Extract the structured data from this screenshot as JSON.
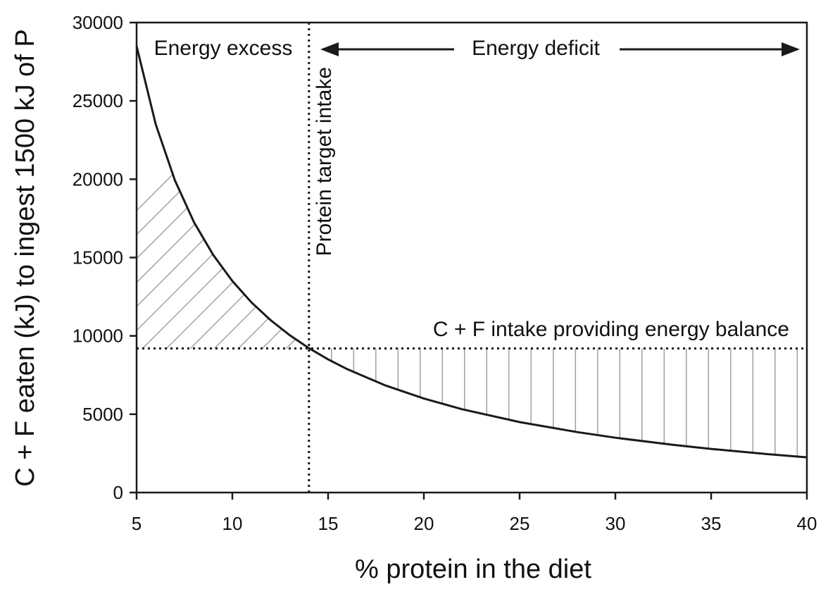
{
  "chart_data": {
    "type": "line",
    "xlabel": "% protein in the diet",
    "ylabel": "C + F eaten (kJ) to ingest 1500 kJ of P",
    "xlim": [
      5,
      40
    ],
    "ylim": [
      0,
      30000
    ],
    "x_ticks": [
      5,
      10,
      15,
      20,
      25,
      30,
      35,
      40
    ],
    "y_ticks": [
      0,
      5000,
      10000,
      15000,
      20000,
      25000,
      30000
    ],
    "x_tick_labels": [
      "5",
      "10",
      "15",
      "20",
      "25",
      "30",
      "35",
      "40"
    ],
    "y_tick_labels": [
      "0",
      "5000",
      "10000",
      "15000",
      "20000",
      "25000",
      "30000"
    ],
    "grid": false,
    "series": [
      {
        "x": [
          5,
          6,
          7,
          8,
          9,
          10,
          11,
          12,
          13,
          14,
          15,
          16,
          18,
          20,
          22,
          25,
          28,
          30,
          33,
          35,
          38,
          40
        ],
        "y": [
          28500,
          23500,
          19929,
          17250,
          15167,
          13500,
          12136,
          11000,
          10038,
          9214,
          8500,
          7875,
          6833,
          6000,
          5318,
          4500,
          3857,
          3500,
          3045,
          2786,
          2447,
          2250
        ],
        "color": "#1a1a1a"
      }
    ],
    "reference_lines": {
      "protein_target_x": 14,
      "energy_balance_y": 9200
    },
    "annotations": {
      "energy_excess": "Energy excess",
      "energy_deficit": "Energy deficit",
      "protein_target": "Protein target intake",
      "energy_balance": "C + F intake providing energy balance"
    },
    "colors": {
      "curve": "#1a1a1a",
      "hatch": "#a0a0a0",
      "axis": "#1a1a1a"
    }
  }
}
